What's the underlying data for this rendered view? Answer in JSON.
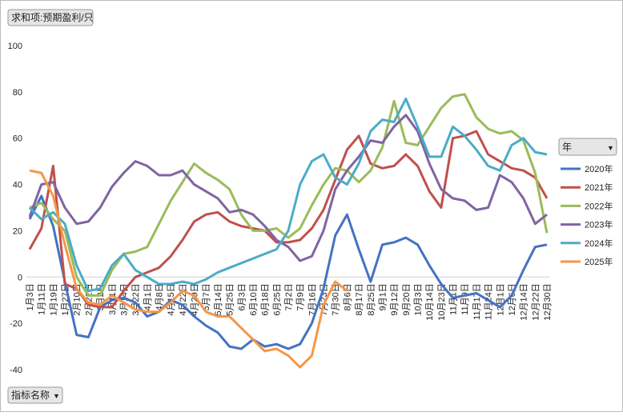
{
  "chart_data": {
    "type": "line",
    "value_field": "求和项:预期盈利/只",
    "axis_field": "指标名称",
    "legend_title": "年",
    "categories": [
      "1月3日",
      "1月11日",
      "1月19日",
      "1月27日",
      "2月10日",
      "2月22日",
      "3月2日",
      "3月11日",
      "3月14日",
      "3月22日",
      "4月1日",
      "4月8日",
      "4月15日",
      "4月22日",
      "4月29日",
      "5月7日",
      "5月14日",
      "5月25日",
      "6月3日",
      "6月10日",
      "6月18日",
      "6月25日",
      "7月2日",
      "7月9日",
      "7月16日",
      "7月23日",
      "7月30日",
      "8月6日",
      "8月17日",
      "8月25日",
      "9月1日",
      "9月12日",
      "9月20日",
      "10月3日",
      "10月14日",
      "10月23日",
      "11月1日",
      "11月9日",
      "11月17日",
      "11月24日",
      "12月1日",
      "12月6日",
      "12月14日",
      "12月22日",
      "12月30日"
    ],
    "ylim": [
      -40,
      100
    ],
    "yticks": [
      -40,
      -20,
      0,
      20,
      40,
      60,
      80,
      100
    ],
    "grid": false,
    "series": [
      {
        "name": "2020年",
        "color": "#4472c4",
        "values": [
          25,
          35,
          22,
          -2,
          -25,
          -26,
          -13,
          -10,
          -9,
          -11,
          -17,
          -15,
          -10,
          -12,
          -17,
          -21,
          -24,
          -30,
          -31,
          -27,
          -30,
          -29,
          -31,
          -29,
          -20,
          -5,
          18,
          27,
          12,
          -2,
          14,
          15,
          17,
          14,
          5,
          -3,
          -9,
          -8,
          -7,
          -10,
          -13,
          -8,
          3,
          13,
          14
        ]
      },
      {
        "name": "2021年",
        "color": "#c0504d",
        "values": [
          12,
          21,
          48,
          -3,
          -5,
          -12,
          -13,
          -13,
          -6,
          0,
          2,
          4,
          9,
          16,
          24,
          27,
          28,
          24,
          22,
          21,
          20,
          15,
          15,
          16,
          21,
          29,
          42,
          55,
          61,
          49,
          47,
          48,
          53,
          48,
          37,
          30,
          60,
          61,
          63,
          53,
          50,
          47,
          46,
          43,
          34
        ]
      },
      {
        "name": "2022年",
        "color": "#9bbb59",
        "values": [
          30,
          32,
          25,
          20,
          0,
          -8,
          -8,
          3,
          10,
          11,
          13,
          23,
          33,
          41,
          49,
          45,
          42,
          38,
          27,
          20,
          20,
          21,
          17,
          21,
          31,
          40,
          47,
          46,
          41,
          46,
          56,
          76,
          58,
          57,
          65,
          73,
          78,
          79,
          69,
          64,
          62,
          63,
          59,
          45,
          19
        ]
      },
      {
        "name": "2023年",
        "color": "#8064a2",
        "values": [
          26,
          40,
          41,
          30,
          23,
          24,
          30,
          39,
          45,
          50,
          48,
          44,
          44,
          46,
          40,
          37,
          34,
          28,
          29,
          27,
          22,
          16,
          13,
          7,
          9,
          20,
          38,
          46,
          52,
          59,
          58,
          65,
          70,
          63,
          49,
          38,
          34,
          33,
          29,
          30,
          44,
          41,
          34,
          23,
          27
        ]
      },
      {
        "name": "2024年",
        "color": "#4bacc6",
        "values": [
          30,
          25,
          28,
          23,
          5,
          -6,
          -5,
          5,
          10,
          3,
          0,
          -3,
          -3,
          -2,
          -3,
          -1,
          2,
          4,
          6,
          8,
          10,
          12,
          20,
          40,
          50,
          53,
          43,
          40,
          49,
          63,
          68,
          67,
          77,
          65,
          52,
          52,
          65,
          61,
          55,
          48,
          46,
          57,
          60,
          54,
          53
        ]
      },
      {
        "name": "2025年",
        "color": "#f79646",
        "values": [
          46,
          45,
          35,
          14,
          -5,
          -11,
          -12,
          -8,
          -11,
          -14,
          -15,
          -15,
          -11,
          -6,
          -8,
          -15,
          -17,
          -17,
          -22,
          -27,
          -32,
          -31,
          -34,
          -39,
          -34,
          -12,
          -2,
          -6,
          null,
          null,
          null,
          null,
          null,
          null,
          null,
          null,
          null,
          null,
          null,
          null,
          null,
          null,
          null,
          null,
          null
        ]
      }
    ]
  }
}
